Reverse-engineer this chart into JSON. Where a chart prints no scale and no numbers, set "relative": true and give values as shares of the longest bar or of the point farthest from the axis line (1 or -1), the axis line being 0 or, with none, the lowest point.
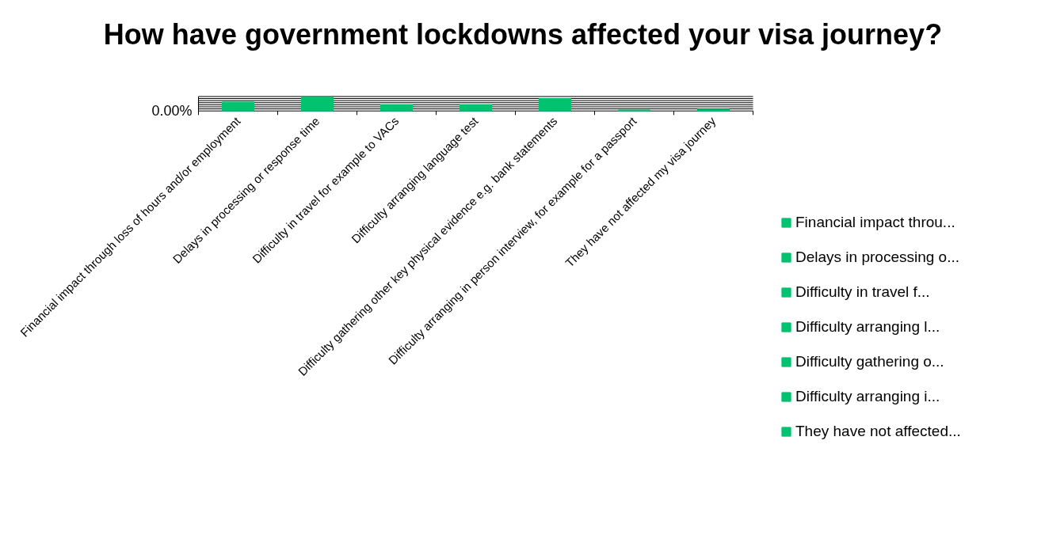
{
  "chart_data": {
    "type": "bar",
    "title": "How have government lockdowns affected your visa journey?",
    "relative": true,
    "grid": "y",
    "legend": "right",
    "annotations": [
      "0.00%"
    ],
    "categories": [
      "Financial impact through loss of hours and/or employment",
      "Delays in processing or response time",
      "Difficulty in travel for example to VACs",
      "Difficulty arranging language test",
      "Difficulty gathering other key physical evidence e.g. bank statements",
      "Difficulty arranging in person interview, for example for a passport",
      "They have not affected my visa journey"
    ],
    "series": [
      {
        "name": "Financial impact throu...",
        "color": "#00c26f",
        "values": [
          0.65,
          null,
          null,
          null,
          null,
          null,
          null
        ]
      },
      {
        "name": "Delays in processing o...",
        "color": "#00c26f",
        "values": [
          null,
          1,
          null,
          null,
          null,
          null,
          null
        ]
      },
      {
        "name": "Difficulty in travel f...",
        "color": "#00c26f",
        "values": [
          null,
          null,
          0.45,
          null,
          null,
          null,
          null
        ]
      },
      {
        "name": "Difficulty arranging l...",
        "color": "#00c26f",
        "values": [
          null,
          null,
          null,
          0.45,
          null,
          null,
          null
        ]
      },
      {
        "name": "Difficulty gathering o...",
        "color": "#00c26f",
        "values": [
          null,
          null,
          null,
          null,
          0.9,
          null,
          null
        ]
      },
      {
        "name": "Difficulty arranging i...",
        "color": "#00c26f",
        "values": [
          null,
          null,
          null,
          null,
          null,
          0.06,
          null
        ]
      },
      {
        "name": "They have not affected...",
        "color": "#00c26f",
        "values": [
          null,
          null,
          null,
          null,
          null,
          null,
          0.13
        ]
      }
    ]
  }
}
